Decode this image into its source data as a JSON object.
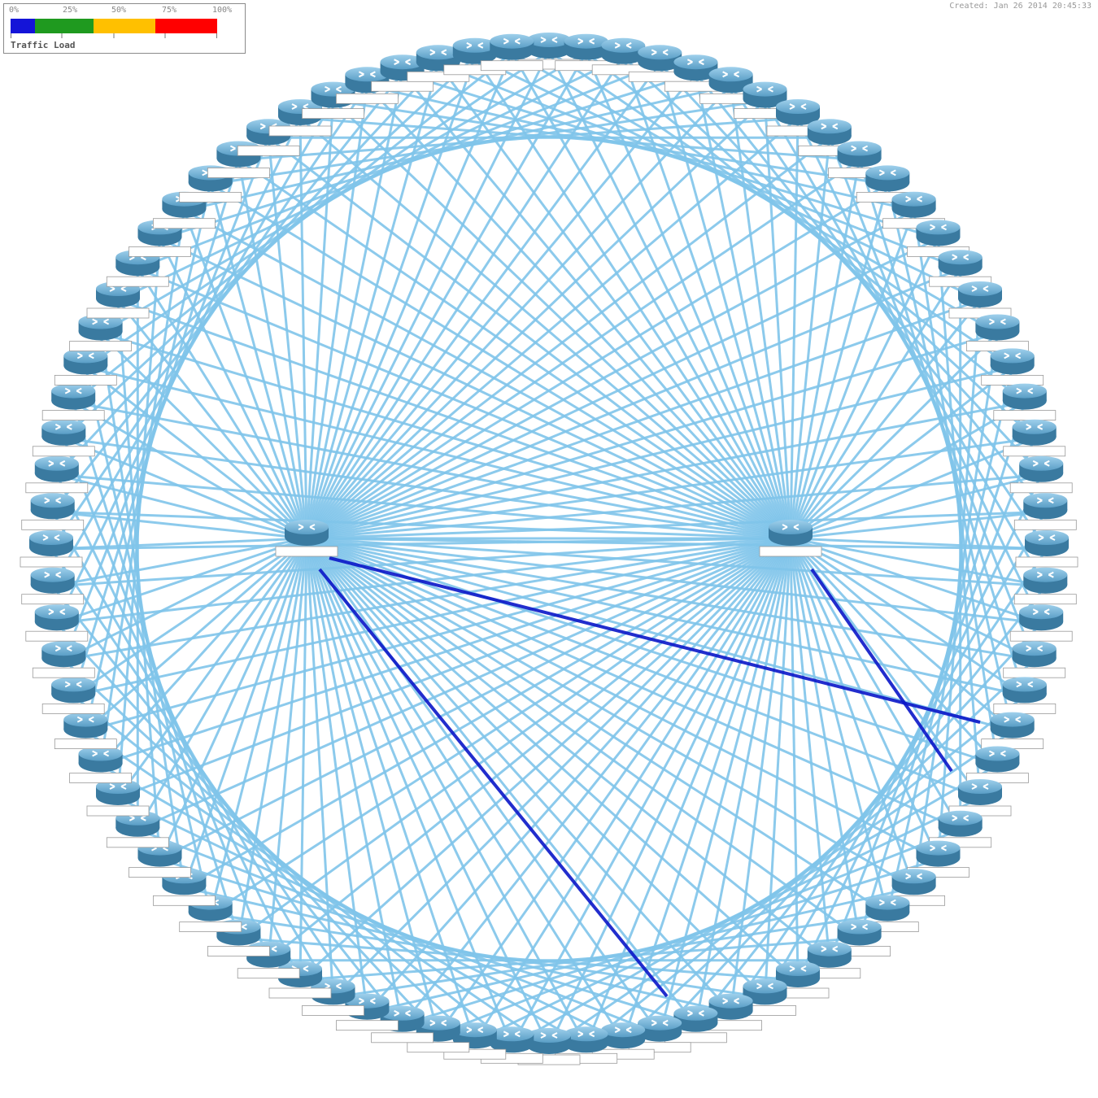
{
  "legend": {
    "title": "Traffic Load",
    "ticks": [
      "0%",
      "25%",
      "50%",
      "75%",
      "100%"
    ],
    "colors": [
      "#1414d8",
      "#1f9a1f",
      "#ffc000",
      "#ff0000"
    ]
  },
  "timestamp": "Created: Jan 26 2014 20:45:33",
  "colors": {
    "link": "#7fc4ea",
    "link_active": "#0a16c8",
    "router_top": "#74b4d8",
    "router_side": "#3a7aa0",
    "label_bg": "#ffffff"
  },
  "diagram": {
    "ring_node_count": 84,
    "hubs": [
      {
        "id": "hub-left"
      },
      {
        "id": "hub-right"
      }
    ]
  }
}
